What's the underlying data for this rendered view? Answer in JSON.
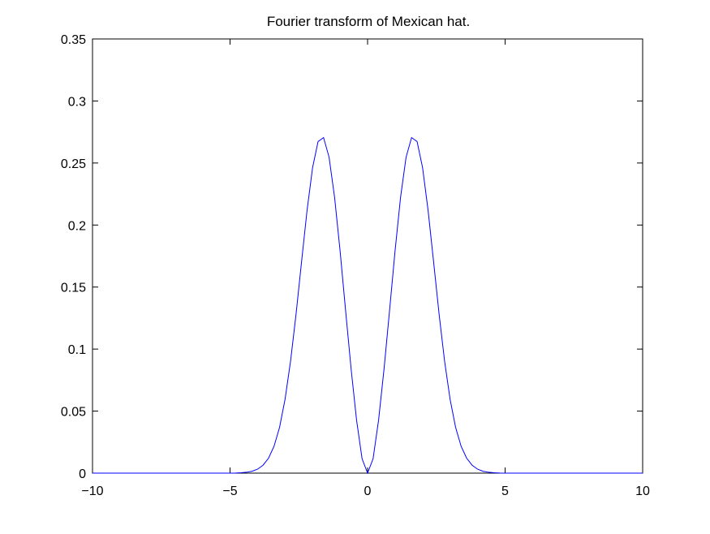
{
  "chart_data": {
    "type": "line",
    "title": "Fourier transform of Mexican hat.",
    "xlabel": "",
    "ylabel": "",
    "xlim": [
      -10,
      10
    ],
    "ylim": [
      0,
      0.35
    ],
    "x_ticks": [
      -10,
      -5,
      0,
      5,
      10
    ],
    "x_tick_labels": [
      "−10",
      "−5",
      "0",
      "5",
      "10"
    ],
    "y_ticks": [
      0,
      0.05,
      0.1,
      0.15,
      0.2,
      0.25,
      0.3,
      0.35
    ],
    "y_tick_labels": [
      "0",
      "0.05",
      "0.1",
      "0.15",
      "0.2",
      "0.25",
      "0.3",
      "0.35"
    ],
    "grid": false,
    "legend": "none",
    "series": [
      {
        "color": "#0000ff",
        "x": [
          -10,
          -9.8,
          -9.6,
          -9.4,
          -9.2,
          -9,
          -8.8,
          -8.6,
          -8.4,
          -8.2,
          -8,
          -7.8,
          -7.6,
          -7.4,
          -7.2,
          -7,
          -6.8,
          -6.6,
          -6.4,
          -6.2,
          -6,
          -5.8,
          -5.6,
          -5.4,
          -5.2,
          -5,
          -4.8,
          -4.6,
          -4.4,
          -4.2,
          -4,
          -3.8,
          -3.6,
          -3.4,
          -3.2,
          -3,
          -2.8,
          -2.6,
          -2.4,
          -2.2,
          -2,
          -1.8,
          -1.6,
          -1.4,
          -1.2,
          -1,
          -0.8,
          -0.6,
          -0.4,
          -0.2,
          0,
          0.2,
          0.4,
          0.6,
          0.8,
          1,
          1.2,
          1.4,
          1.6,
          1.8,
          2,
          2.2,
          2.4,
          2.6,
          2.8,
          3,
          3.2,
          3.4,
          3.6,
          3.8,
          4,
          4.2,
          4.4,
          4.6,
          4.8,
          5,
          5.2,
          5.4,
          5.6,
          5.8,
          6,
          6.2,
          6.4,
          6.6,
          6.8,
          7,
          7.2,
          7.4,
          7.6,
          7.8,
          8,
          8.2,
          8.4,
          8.6,
          8.8,
          9,
          9.2,
          9.4,
          9.6,
          9.8,
          10
        ],
        "y": [
          0,
          0,
          0,
          0,
          0,
          0,
          0,
          0,
          0,
          0,
          0,
          0,
          0,
          0,
          0,
          0,
          0,
          0,
          0,
          0,
          0,
          0,
          0,
          0,
          0,
          0,
          0.0001,
          0.0003,
          0.0007,
          0.0015,
          0.0032,
          0.0064,
          0.0121,
          0.0217,
          0.0369,
          0.0595,
          0.0902,
          0.1282,
          0.1704,
          0.2118,
          0.2462,
          0.2673,
          0.2705,
          0.2547,
          0.2225,
          0.1794,
          0.1313,
          0.0843,
          0.0427,
          0.0116,
          0,
          0.0116,
          0.0427,
          0.0843,
          0.1313,
          0.1794,
          0.2225,
          0.2547,
          0.2705,
          0.2673,
          0.2462,
          0.2118,
          0.1704,
          0.1282,
          0.0902,
          0.0595,
          0.0369,
          0.0217,
          0.0121,
          0.0064,
          0.0032,
          0.0015,
          0.0007,
          0.0003,
          0.0001,
          0,
          0,
          0,
          0,
          0,
          0,
          0,
          0,
          0,
          0,
          0,
          0,
          0,
          0,
          0,
          0,
          0,
          0,
          0,
          0,
          0,
          0,
          0,
          0,
          0,
          0
        ]
      }
    ]
  }
}
